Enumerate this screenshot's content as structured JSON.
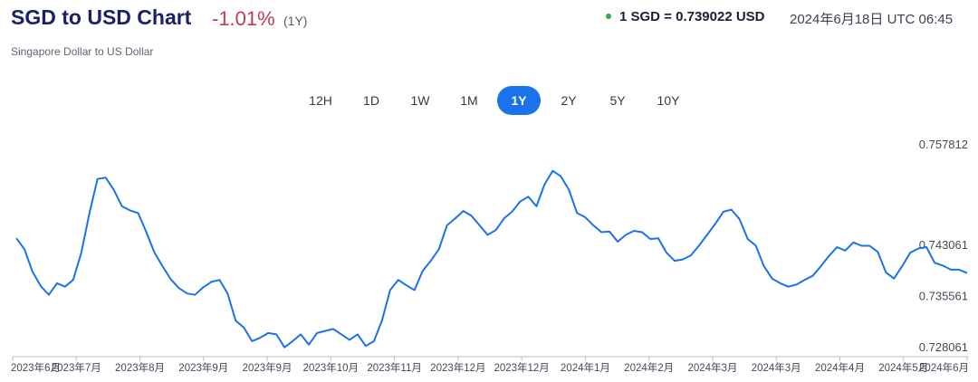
{
  "header": {
    "title": "SGD to USD Chart",
    "change": "-1.01%",
    "period": "(1Y)",
    "subtitle": "Singapore Dollar to US Dollar",
    "rate": "1 SGD = 0.739022 USD",
    "timestamp": "2024年6月18日 UTC 06:45"
  },
  "tabs": [
    {
      "label": "12H",
      "active": false
    },
    {
      "label": "1D",
      "active": false
    },
    {
      "label": "1W",
      "active": false
    },
    {
      "label": "1M",
      "active": false
    },
    {
      "label": "1Y",
      "active": true
    },
    {
      "label": "2Y",
      "active": false
    },
    {
      "label": "5Y",
      "active": false
    },
    {
      "label": "10Y",
      "active": false
    }
  ],
  "colors": {
    "line": "#1a73e8",
    "accent": "#1a73e8",
    "negative": "#c23a55",
    "live_dot": "#2eaa4a"
  },
  "chart_data": {
    "type": "line",
    "title": "",
    "xlabel": "",
    "ylabel": "",
    "x_tick_labels": [
      "2023年6月",
      "2023年7月",
      "2023年8月",
      "2023年9月",
      "2023年9月",
      "2023年10月",
      "2023年11月",
      "2023年12月",
      "2023年12月",
      "2024年1月",
      "2024年2月",
      "2024年3月",
      "2024年3月",
      "2024年4月",
      "2024年5月",
      "2024年6月"
    ],
    "y_tick_labels": [
      "0.757812",
      "0.743061",
      "0.735561",
      "0.728061"
    ],
    "ylim": [
      0.728061,
      0.757812
    ],
    "grid": false,
    "series": [
      {
        "values": [
          0.7441,
          0.7425,
          0.7392,
          0.7371,
          0.7358,
          0.7375,
          0.737,
          0.738,
          0.742,
          0.7478,
          0.7528,
          0.753,
          0.7512,
          0.7488,
          0.7482,
          0.7478,
          0.745,
          0.742,
          0.74,
          0.7381,
          0.7368,
          0.736,
          0.7358,
          0.7369,
          0.7377,
          0.738,
          0.736,
          0.732,
          0.731,
          0.729,
          0.7295,
          0.7302,
          0.73,
          0.7281,
          0.729,
          0.73,
          0.7285,
          0.7302,
          0.7305,
          0.7308,
          0.73,
          0.7292,
          0.73,
          0.7283,
          0.729,
          0.732,
          0.7365,
          0.738,
          0.7372,
          0.7365,
          0.7393,
          0.7408,
          0.7425,
          0.746,
          0.747,
          0.7481,
          0.7474,
          0.746,
          0.7446,
          0.7453,
          0.747,
          0.748,
          0.7495,
          0.7502,
          0.7488,
          0.752,
          0.754,
          0.7532,
          0.7512,
          0.7478,
          0.7472,
          0.746,
          0.745,
          0.7451,
          0.7436,
          0.7446,
          0.7452,
          0.745,
          0.744,
          0.7441,
          0.742,
          0.7408,
          0.741,
          0.7416,
          0.743,
          0.7446,
          0.7462,
          0.748,
          0.7483,
          0.7469,
          0.744,
          0.743,
          0.74,
          0.7382,
          0.7375,
          0.737,
          0.7373,
          0.738,
          0.7386,
          0.74,
          0.7415,
          0.7428,
          0.7423,
          0.7435,
          0.743,
          0.743,
          0.7421,
          0.7391,
          0.7382,
          0.74,
          0.742,
          0.7426,
          0.7428,
          0.7405,
          0.7401,
          0.7395,
          0.7395,
          0.739
        ]
      }
    ]
  }
}
